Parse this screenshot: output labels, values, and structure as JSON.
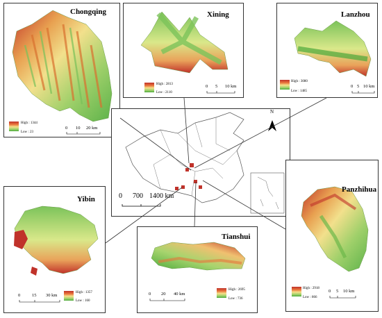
{
  "panels": {
    "chongqing": {
      "name": "Chongqing",
      "high": "High : 1344",
      "low": "Low : 23",
      "sb0": "0",
      "sb1": "10",
      "sb2": "20 km"
    },
    "xining": {
      "name": "Xining",
      "high": "High : 2813",
      "low": "Low : 2110",
      "sb0": "0",
      "sb1": "5",
      "sb2": "10 km"
    },
    "lanzhou": {
      "name": "Lanzhou",
      "high": "High : 3080",
      "low": "Low : 1485",
      "sb0": "0",
      "sb1": "5",
      "sb2": "10 km"
    },
    "yibin": {
      "name": "Yibin",
      "high": "High : 1357",
      "low": "Low : 160",
      "sb0": "0",
      "sb1": "15",
      "sb2": "30 km"
    },
    "tianshui": {
      "name": "Tianshui",
      "high": "High : 2695",
      "low": "Low : 736",
      "sb0": "0",
      "sb1": "20",
      "sb2": "40 km"
    },
    "panzhihua": {
      "name": "Panzhihua",
      "high": "High : 2918",
      "low": "Low : 866",
      "sb0": "0",
      "sb1": "5",
      "sb2": "10 km"
    }
  },
  "china": {
    "north": "N",
    "sb0": "0",
    "sb1": "700",
    "sb2": "1400 km"
  },
  "colors": {
    "high": "#c0322a",
    "mid": "#f5e08a",
    "low": "#4caa3c"
  }
}
